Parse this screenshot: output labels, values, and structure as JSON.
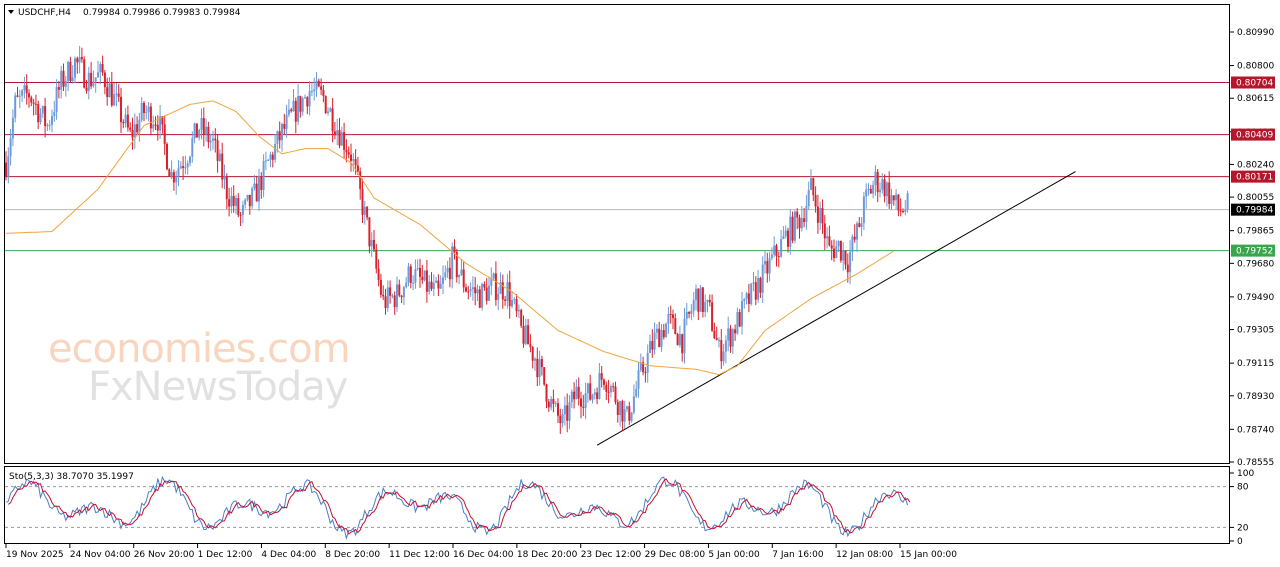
{
  "header": {
    "symbol": "USDCHF,H4",
    "ohlc": "0.79984 0.79986 0.79983 0.79984"
  },
  "watermark": {
    "line1": "economies.com",
    "line2": "FxNewsToday"
  },
  "colors": {
    "bull": "#6b9bd8",
    "bear": "#d8212c",
    "ma": "#f0a53c",
    "level_red": "#b5162b",
    "level_green": "#3aa64b",
    "current": "#000000",
    "trend": "#000000"
  },
  "chart_data": {
    "type": "candlestick",
    "symbol": "USDCHF",
    "timeframe": "H4",
    "ylim": [
      0.78555,
      0.8109
    ],
    "y_ticks": [
      "0.80990",
      "0.80800",
      "0.80615",
      "0.80425",
      "0.80240",
      "0.80055",
      "0.79865",
      "0.79680",
      "0.79490",
      "0.79305",
      "0.79115",
      "0.78930",
      "0.78740",
      "0.78555"
    ],
    "x_labels": [
      "19 Nov 2025",
      "24 Nov 04:00",
      "26 Nov 20:00",
      "1 Dec 12:00",
      "4 Dec 04:00",
      "8 Dec 20:00",
      "11 Dec 12:00",
      "16 Dec 04:00",
      "18 Dec 20:00",
      "23 Dec 12:00",
      "29 Dec 08:00",
      "5 Jan 00:00",
      "7 Jan 16:00",
      "12 Jan 08:00",
      "15 Jan 00:00"
    ],
    "close_path": [
      [
        0,
        0.8025
      ],
      [
        4,
        0.8058
      ],
      [
        10,
        0.8064
      ],
      [
        18,
        0.8046
      ],
      [
        24,
        0.807
      ],
      [
        30,
        0.8082
      ],
      [
        36,
        0.8072
      ],
      [
        42,
        0.8075
      ],
      [
        48,
        0.8058
      ],
      [
        54,
        0.804
      ],
      [
        60,
        0.8054
      ],
      [
        66,
        0.805
      ],
      [
        72,
        0.8018
      ],
      [
        78,
        0.8028
      ],
      [
        84,
        0.8045
      ],
      [
        90,
        0.8036
      ],
      [
        96,
        0.8009
      ],
      [
        102,
        0.7994
      ],
      [
        108,
        0.8006
      ],
      [
        114,
        0.8025
      ],
      [
        120,
        0.8042
      ],
      [
        126,
        0.8055
      ],
      [
        132,
        0.8066
      ],
      [
        138,
        0.8062
      ],
      [
        144,
        0.8045
      ],
      [
        150,
        0.803
      ],
      [
        156,
        0.7995
      ],
      [
        160,
        0.797
      ],
      [
        164,
        0.7946
      ],
      [
        170,
        0.795
      ],
      [
        176,
        0.7963
      ],
      [
        182,
        0.7956
      ],
      [
        188,
        0.795
      ],
      [
        194,
        0.797
      ],
      [
        200,
        0.7955
      ],
      [
        206,
        0.795
      ],
      [
        212,
        0.7955
      ],
      [
        218,
        0.7953
      ],
      [
        224,
        0.793
      ],
      [
        230,
        0.7915
      ],
      [
        234,
        0.79
      ],
      [
        238,
        0.7885
      ],
      [
        242,
        0.7877
      ],
      [
        248,
        0.7895
      ],
      [
        254,
        0.7893
      ],
      [
        260,
        0.7905
      ],
      [
        266,
        0.789
      ],
      [
        270,
        0.788
      ],
      [
        276,
        0.7905
      ],
      [
        282,
        0.7925
      ],
      [
        288,
        0.7935
      ],
      [
        294,
        0.7925
      ],
      [
        300,
        0.795
      ],
      [
        306,
        0.794
      ],
      [
        310,
        0.7918
      ],
      [
        316,
        0.793
      ],
      [
        322,
        0.7945
      ],
      [
        328,
        0.7958
      ],
      [
        334,
        0.7972
      ],
      [
        340,
        0.7985
      ],
      [
        346,
        0.7995
      ],
      [
        350,
        0.801
      ],
      [
        354,
        0.7995
      ],
      [
        358,
        0.7975
      ],
      [
        362,
        0.7978
      ],
      [
        366,
        0.797
      ],
      [
        370,
        0.7985
      ],
      [
        374,
        0.8005
      ],
      [
        378,
        0.8015
      ],
      [
        382,
        0.8012
      ],
      [
        388,
        0.7998
      ],
      [
        392,
        0.8
      ]
    ],
    "ma_path": [
      [
        0,
        0.7985
      ],
      [
        20,
        0.7986
      ],
      [
        40,
        0.801
      ],
      [
        60,
        0.8046
      ],
      [
        80,
        0.8058
      ],
      [
        90,
        0.806
      ],
      [
        100,
        0.8054
      ],
      [
        110,
        0.804
      ],
      [
        120,
        0.803
      ],
      [
        130,
        0.8033
      ],
      [
        140,
        0.8033
      ],
      [
        150,
        0.8025
      ],
      [
        160,
        0.8005
      ],
      [
        180,
        0.799
      ],
      [
        200,
        0.7968
      ],
      [
        220,
        0.7952
      ],
      [
        240,
        0.793
      ],
      [
        260,
        0.7918
      ],
      [
        280,
        0.791
      ],
      [
        300,
        0.7908
      ],
      [
        310,
        0.7905
      ],
      [
        318,
        0.791
      ],
      [
        330,
        0.793
      ],
      [
        350,
        0.7948
      ],
      [
        370,
        0.7962
      ],
      [
        386,
        0.7975
      ]
    ],
    "levels": [
      {
        "label": "0.80704",
        "value": 0.80704,
        "color": "#b5162b"
      },
      {
        "label": "0.80409",
        "value": 0.80409,
        "color": "#b5162b"
      },
      {
        "label": "0.80171",
        "value": 0.80171,
        "color": "#b5162b"
      },
      {
        "label": "0.79984",
        "value": 0.79984,
        "color": "#000000"
      },
      {
        "label": "0.79752",
        "value": 0.79752,
        "color": "#3aa64b"
      }
    ],
    "trendline": [
      [
        257,
        0.7865
      ],
      [
        465,
        0.802
      ]
    ],
    "bars_total": 530,
    "oscillator": {
      "label": "Sto(5,3,3) 38.7070 35.1997",
      "ylim": [
        0,
        100
      ],
      "y_ticks": [
        "100",
        "80",
        "20",
        "0"
      ],
      "levels": [
        80,
        20
      ],
      "main_color": "#4a7fc8",
      "signal_color": "#c8102e"
    }
  }
}
